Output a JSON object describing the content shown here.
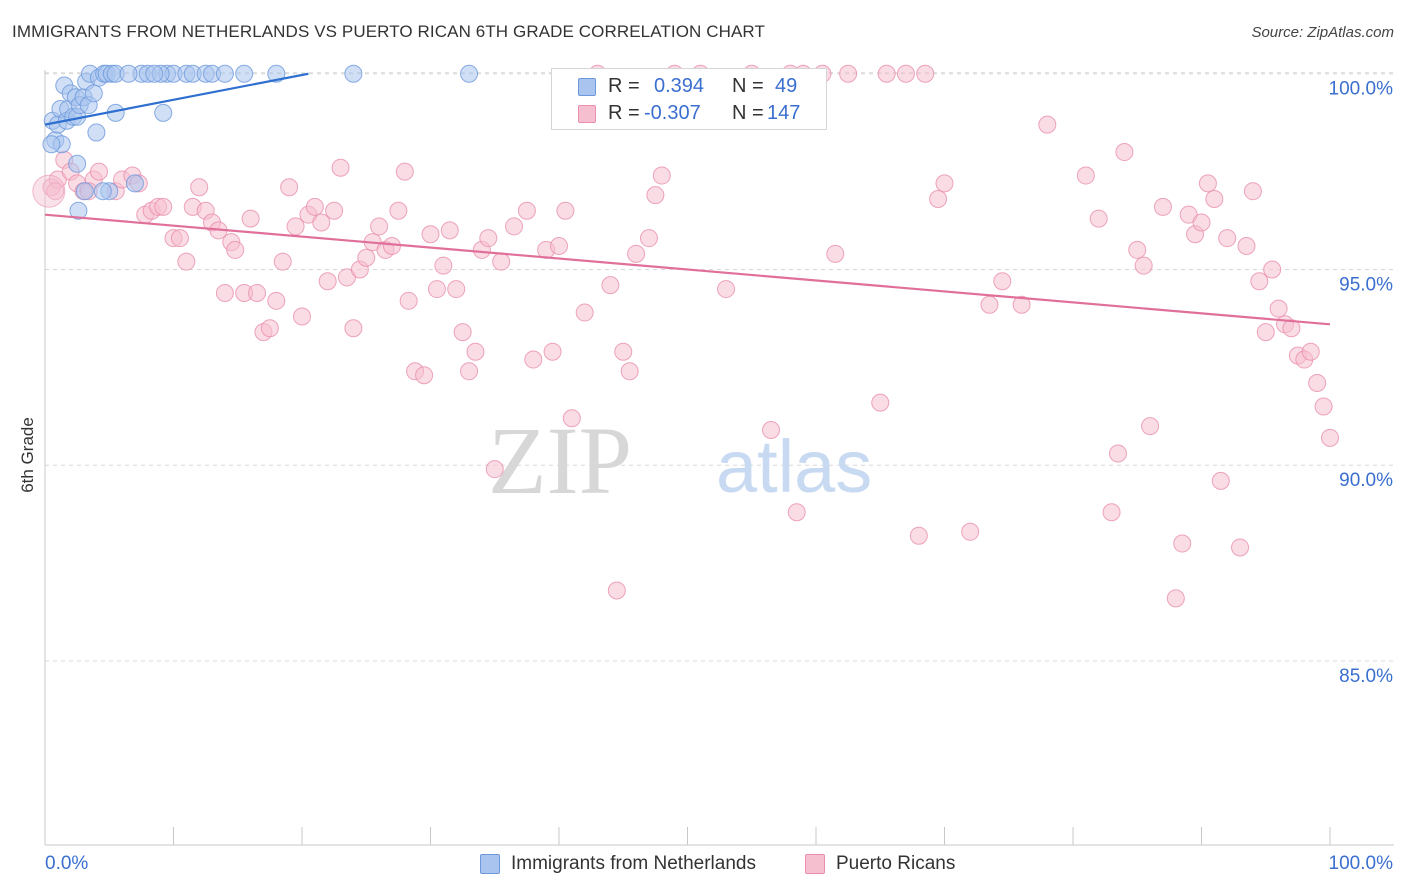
{
  "title": "IMMIGRANTS FROM NETHERLANDS VS PUERTO RICAN 6TH GRADE CORRELATION CHART",
  "source": "Source: ZipAtlas.com",
  "watermark": {
    "zip": "ZIP",
    "atlas": "atlas"
  },
  "legend_top": [
    {
      "r_label": "R =",
      "r_value": "0.394",
      "n_label": "N =",
      "n_value": "49"
    },
    {
      "r_label": "R =",
      "r_value": "-0.307",
      "n_label": "N =",
      "n_value": "147"
    }
  ],
  "legend_bottom": [
    "Immigrants from Netherlands",
    "Puerto Ricans"
  ],
  "colors": {
    "blue_fill": "#a9c4ef",
    "blue_stroke": "#6d98dc",
    "blue_line": "#2f6fd0",
    "pink_fill": "#f5bfd0",
    "pink_stroke": "#e98fad",
    "pink_line": "#e0709a",
    "axis_text": "#3a6fd0",
    "grid": "#d8d8d8"
  },
  "chart_data": {
    "type": "scatter",
    "title": "IMMIGRANTS FROM NETHERLANDS VS PUERTO RICAN 6TH GRADE CORRELATION CHART",
    "xlabel": "",
    "ylabel": "6th Grade",
    "xlim": [
      0,
      100
    ],
    "ylim": [
      80.3,
      100.3
    ],
    "x_tick_labels": [
      "0.0%",
      "100.0%"
    ],
    "y_ticks": [
      85,
      90,
      95,
      100
    ],
    "y_tick_labels": [
      "85.0%",
      "90.0%",
      "95.0%",
      "100.0%"
    ],
    "grid": "horizontal dashed",
    "legend": "bottom-center",
    "series": [
      {
        "name": "Immigrants from Netherlands",
        "color": "blue",
        "trend": [
          [
            0,
            98.7
          ],
          [
            20.5,
            100.0
          ]
        ],
        "points": [
          [
            0.6,
            98.8
          ],
          [
            0.8,
            98.3
          ],
          [
            1.0,
            98.7
          ],
          [
            1.2,
            99.1
          ],
          [
            1.3,
            98.2
          ],
          [
            1.5,
            99.7
          ],
          [
            1.7,
            98.8
          ],
          [
            1.8,
            99.1
          ],
          [
            2.0,
            99.5
          ],
          [
            2.2,
            98.9
          ],
          [
            2.4,
            99.4
          ],
          [
            2.5,
            98.9
          ],
          [
            2.7,
            99.2
          ],
          [
            3.0,
            99.4
          ],
          [
            3.2,
            99.8
          ],
          [
            3.4,
            99.2
          ],
          [
            3.8,
            99.5
          ],
          [
            4.0,
            98.5
          ],
          [
            3.5,
            100.0
          ],
          [
            4.2,
            99.9
          ],
          [
            4.6,
            100.0
          ],
          [
            4.8,
            100.0
          ],
          [
            5.2,
            100.0
          ],
          [
            5.5,
            100.0
          ],
          [
            5.0,
            97.0
          ],
          [
            4.5,
            97.0
          ],
          [
            3.1,
            97.0
          ],
          [
            2.5,
            97.7
          ],
          [
            2.6,
            96.5
          ],
          [
            5.5,
            99.0
          ],
          [
            7.0,
            97.2
          ],
          [
            7.5,
            100.0
          ],
          [
            8.0,
            100.0
          ],
          [
            9.5,
            100.0
          ],
          [
            10.0,
            100.0
          ],
          [
            11.0,
            100.0
          ],
          [
            11.5,
            100.0
          ],
          [
            9.0,
            100.0
          ],
          [
            6.5,
            100.0
          ],
          [
            8.5,
            100.0
          ],
          [
            12.5,
            100.0
          ],
          [
            13.0,
            100.0
          ],
          [
            14.0,
            100.0
          ],
          [
            15.5,
            100.0
          ],
          [
            9.2,
            99.0
          ],
          [
            0.5,
            98.2
          ],
          [
            18.0,
            100.0
          ],
          [
            24.0,
            100.0
          ],
          [
            33.0,
            100.0
          ]
        ]
      },
      {
        "name": "Puerto Ricans",
        "color": "pink",
        "trend": [
          [
            0,
            96.4
          ],
          [
            100,
            93.6
          ]
        ],
        "points": [
          [
            0.5,
            97.1
          ],
          [
            1.0,
            97.3
          ],
          [
            1.5,
            97.8
          ],
          [
            2.0,
            97.5
          ],
          [
            2.5,
            97.2
          ],
          [
            3.0,
            97.0
          ],
          [
            3.8,
            97.3
          ],
          [
            4.2,
            97.5
          ],
          [
            5.5,
            97.0
          ],
          [
            6.0,
            97.3
          ],
          [
            6.8,
            97.4
          ],
          [
            7.3,
            97.2
          ],
          [
            7.8,
            96.4
          ],
          [
            8.3,
            96.5
          ],
          [
            8.8,
            96.6
          ],
          [
            9.2,
            96.6
          ],
          [
            10.0,
            95.8
          ],
          [
            10.5,
            95.8
          ],
          [
            11.0,
            95.2
          ],
          [
            11.5,
            96.6
          ],
          [
            12.0,
            97.1
          ],
          [
            12.5,
            96.5
          ],
          [
            13.0,
            96.2
          ],
          [
            13.5,
            96.0
          ],
          [
            14.0,
            94.4
          ],
          [
            14.5,
            95.7
          ],
          [
            14.8,
            95.5
          ],
          [
            15.5,
            94.4
          ],
          [
            16.0,
            96.3
          ],
          [
            16.5,
            94.4
          ],
          [
            17.0,
            93.4
          ],
          [
            17.5,
            93.5
          ],
          [
            18.0,
            94.2
          ],
          [
            18.5,
            95.2
          ],
          [
            19.0,
            97.1
          ],
          [
            19.5,
            96.1
          ],
          [
            20.0,
            93.8
          ],
          [
            20.5,
            96.4
          ],
          [
            21.0,
            96.6
          ],
          [
            21.5,
            96.2
          ],
          [
            22.0,
            94.7
          ],
          [
            22.5,
            96.5
          ],
          [
            23.0,
            97.6
          ],
          [
            23.5,
            94.8
          ],
          [
            24.0,
            93.5
          ],
          [
            24.5,
            95.0
          ],
          [
            25.0,
            95.3
          ],
          [
            25.5,
            95.7
          ],
          [
            26.0,
            96.1
          ],
          [
            26.5,
            95.5
          ],
          [
            27.0,
            95.6
          ],
          [
            27.5,
            96.5
          ],
          [
            28.0,
            97.5
          ],
          [
            28.3,
            94.2
          ],
          [
            28.8,
            92.4
          ],
          [
            29.5,
            92.3
          ],
          [
            30.0,
            95.9
          ],
          [
            30.5,
            94.5
          ],
          [
            31.0,
            95.1
          ],
          [
            31.5,
            96.0
          ],
          [
            32.0,
            94.5
          ],
          [
            32.5,
            93.4
          ],
          [
            33.0,
            92.4
          ],
          [
            33.5,
            92.9
          ],
          [
            34.0,
            95.5
          ],
          [
            34.5,
            95.8
          ],
          [
            35.0,
            89.9
          ],
          [
            35.5,
            95.2
          ],
          [
            36.5,
            96.1
          ],
          [
            37.5,
            96.5
          ],
          [
            38.0,
            92.7
          ],
          [
            39.0,
            95.5
          ],
          [
            39.5,
            92.9
          ],
          [
            40.0,
            95.6
          ],
          [
            40.5,
            96.5
          ],
          [
            41.0,
            91.2
          ],
          [
            42.0,
            93.9
          ],
          [
            43.0,
            100.0
          ],
          [
            44.0,
            94.6
          ],
          [
            44.5,
            86.8
          ],
          [
            45.0,
            92.9
          ],
          [
            45.5,
            92.4
          ],
          [
            46.0,
            95.4
          ],
          [
            47.0,
            95.8
          ],
          [
            47.5,
            96.9
          ],
          [
            48.0,
            97.4
          ],
          [
            48.5,
            99.9
          ],
          [
            49.0,
            100.0
          ],
          [
            51.0,
            100.0
          ],
          [
            53.0,
            94.5
          ],
          [
            55.0,
            100.0
          ],
          [
            56.5,
            90.9
          ],
          [
            58.0,
            100.0
          ],
          [
            58.5,
            88.8
          ],
          [
            59.0,
            100.0
          ],
          [
            60.5,
            100.0
          ],
          [
            61.5,
            95.4
          ],
          [
            62.5,
            100.0
          ],
          [
            65.0,
            91.6
          ],
          [
            65.5,
            100.0
          ],
          [
            67.0,
            100.0
          ],
          [
            68.0,
            88.2
          ],
          [
            68.5,
            100.0
          ],
          [
            69.5,
            96.8
          ],
          [
            70.0,
            97.2
          ],
          [
            72.0,
            88.3
          ],
          [
            73.5,
            94.1
          ],
          [
            74.5,
            94.7
          ],
          [
            76.0,
            94.1
          ],
          [
            78.0,
            98.7
          ],
          [
            81.0,
            97.4
          ],
          [
            82.0,
            96.3
          ],
          [
            83.0,
            88.8
          ],
          [
            83.5,
            90.3
          ],
          [
            84.0,
            98.0
          ],
          [
            85.0,
            95.5
          ],
          [
            85.5,
            95.1
          ],
          [
            86.0,
            91.0
          ],
          [
            87.0,
            96.6
          ],
          [
            88.0,
            86.6
          ],
          [
            88.5,
            88.0
          ],
          [
            89.0,
            96.4
          ],
          [
            89.5,
            95.9
          ],
          [
            90.0,
            96.2
          ],
          [
            90.5,
            97.2
          ],
          [
            91.0,
            96.8
          ],
          [
            91.5,
            89.6
          ],
          [
            92.0,
            95.8
          ],
          [
            93.0,
            87.9
          ],
          [
            93.5,
            95.6
          ],
          [
            94.0,
            97.0
          ],
          [
            94.5,
            94.7
          ],
          [
            95.0,
            93.4
          ],
          [
            95.5,
            95.0
          ],
          [
            96.0,
            94.0
          ],
          [
            96.5,
            93.6
          ],
          [
            97.0,
            93.5
          ],
          [
            97.5,
            92.8
          ],
          [
            98.0,
            92.7
          ],
          [
            98.5,
            92.9
          ],
          [
            99.0,
            92.1
          ],
          [
            99.5,
            91.5
          ],
          [
            100.0,
            90.7
          ],
          [
            3.4,
            97.0
          ],
          [
            0.8,
            97.0
          ]
        ]
      }
    ]
  }
}
